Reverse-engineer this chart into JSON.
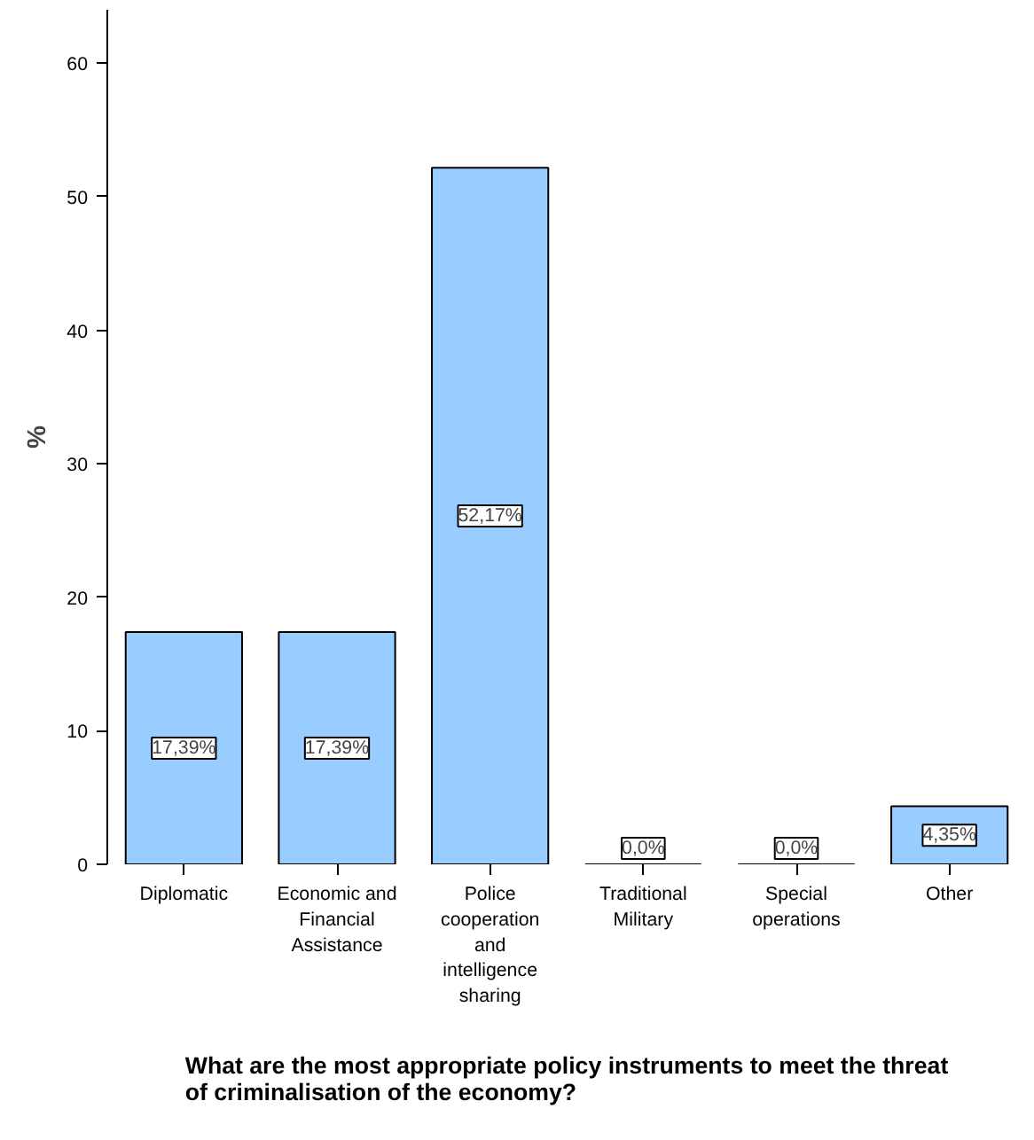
{
  "chart_data": {
    "type": "bar",
    "title": "What are the most appropriate policy instruments to meet the threat of criminalisation of the economy?",
    "ylabel": "%",
    "categories": [
      "Diplomatic",
      "Economic and Financial Assistance",
      "Police cooperation and intelligence sharing",
      "Traditional Military",
      "Special operations",
      "Other"
    ],
    "values": [
      17.39,
      17.39,
      52.17,
      0.0,
      0.0,
      4.35
    ],
    "value_labels": [
      "17,39%",
      "17,39%",
      "52,17%",
      "0,0%",
      "0,0%",
      "4,35%"
    ],
    "color": "#99ccff",
    "ylim": [
      0,
      64
    ],
    "yticks": [
      0,
      10,
      20,
      30,
      40,
      50,
      60
    ],
    "grid": false
  }
}
